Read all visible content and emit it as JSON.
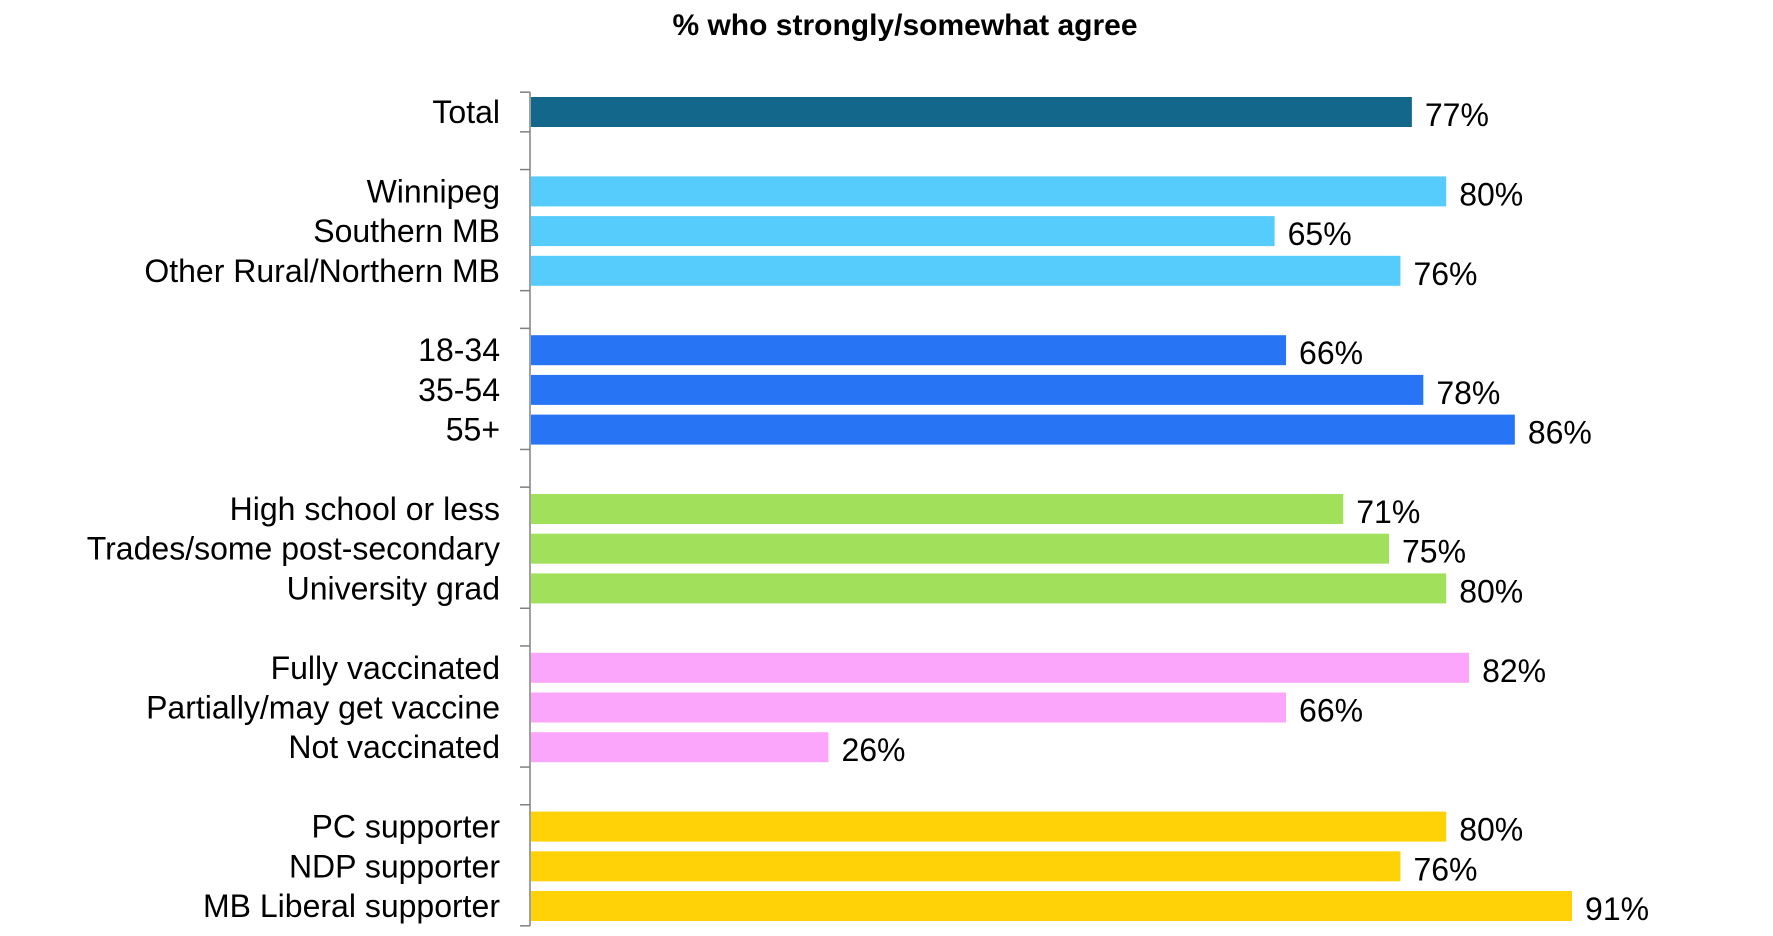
{
  "chart_data": {
    "type": "bar",
    "orientation": "horizontal",
    "title": "% who strongly/somewhat agree",
    "xlabel": "",
    "ylabel": "",
    "xlim": [
      0,
      100
    ],
    "grid": false,
    "value_suffix": "%",
    "groups": [
      {
        "color": "#13678a",
        "bars": [
          {
            "label": "Total",
            "value": 77
          }
        ]
      },
      {
        "color": "#55ccfb",
        "bars": [
          {
            "label": "Winnipeg",
            "value": 80
          },
          {
            "label": "Southern MB",
            "value": 65
          },
          {
            "label": "Other Rural/Northern MB",
            "value": 76
          }
        ]
      },
      {
        "color": "#2775f4",
        "bars": [
          {
            "label": "18-34",
            "value": 66
          },
          {
            "label": "35-54",
            "value": 78
          },
          {
            "label": "55+",
            "value": 86
          }
        ]
      },
      {
        "color": "#a0e05a",
        "bars": [
          {
            "label": "High school or less",
            "value": 71
          },
          {
            "label": "Trades/some post-secondary",
            "value": 75
          },
          {
            "label": "University grad",
            "value": 80
          }
        ]
      },
      {
        "color": "#fba5fb",
        "bars": [
          {
            "label": "Fully vaccinated",
            "value": 82
          },
          {
            "label": "Partially/may get vaccine",
            "value": 66
          },
          {
            "label": "Not vaccinated",
            "value": 26
          }
        ]
      },
      {
        "color": "#ffd208",
        "bars": [
          {
            "label": "PC supporter",
            "value": 80
          },
          {
            "label": "NDP supporter",
            "value": 76
          },
          {
            "label": "MB Liberal supporter",
            "value": 91
          }
        ]
      }
    ]
  }
}
